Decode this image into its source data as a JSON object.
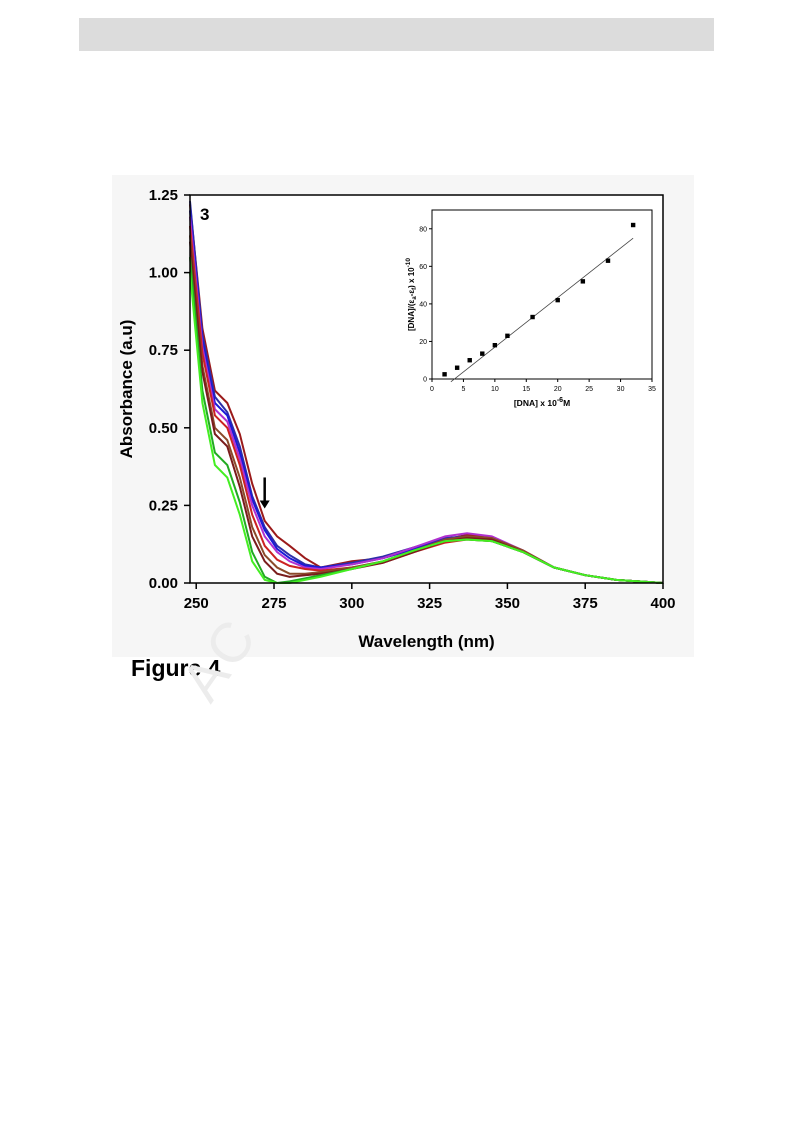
{
  "page": {
    "caption": "Figure 4",
    "watermark": "AC"
  },
  "chart_data": [
    {
      "type": "line",
      "panel_label": "3",
      "xlabel": "Wavelength (nm)",
      "ylabel": "Absorbance (a.u)",
      "xlim": [
        248,
        400
      ],
      "ylim": [
        0,
        1.25
      ],
      "xticks": [
        "250",
        "275",
        "300",
        "325",
        "350",
        "375",
        "400"
      ],
      "yticks": [
        "0.00",
        "0.25",
        "0.50",
        "0.75",
        "1.00",
        "1.25"
      ],
      "annotation": "arrow pointing down near 272 nm (hypochromism)",
      "arrow_x": 272,
      "arrow_y": [
        0.34,
        0.24
      ],
      "series": [
        {
          "color": "#9b1a1a",
          "points": [
            [
              248,
              1.22
            ],
            [
              252,
              0.82
            ],
            [
              256,
              0.62
            ],
            [
              260,
              0.58
            ],
            [
              264,
              0.48
            ],
            [
              268,
              0.32
            ],
            [
              272,
              0.2
            ],
            [
              276,
              0.15
            ],
            [
              280,
              0.12
            ],
            [
              285,
              0.08
            ],
            [
              290,
              0.05
            ],
            [
              300,
              0.07
            ],
            [
              310,
              0.08
            ],
            [
              320,
              0.11
            ],
            [
              330,
              0.14
            ],
            [
              337,
              0.155
            ],
            [
              345,
              0.145
            ],
            [
              355,
              0.1
            ],
            [
              365,
              0.05
            ],
            [
              375,
              0.025
            ],
            [
              385,
              0.01
            ],
            [
              400,
              0.0
            ]
          ]
        },
        {
          "color": "#2e2ea8",
          "points": [
            [
              248,
              1.23
            ],
            [
              252,
              0.8
            ],
            [
              256,
              0.6
            ],
            [
              260,
              0.55
            ],
            [
              264,
              0.44
            ],
            [
              268,
              0.28
            ],
            [
              272,
              0.18
            ],
            [
              276,
              0.12
            ],
            [
              280,
              0.09
            ],
            [
              285,
              0.06
            ],
            [
              290,
              0.05
            ],
            [
              300,
              0.065
            ],
            [
              310,
              0.085
            ],
            [
              320,
              0.115
            ],
            [
              330,
              0.145
            ],
            [
              337,
              0.15
            ],
            [
              345,
              0.14
            ],
            [
              355,
              0.1
            ],
            [
              365,
              0.05
            ],
            [
              375,
              0.025
            ],
            [
              385,
              0.01
            ],
            [
              400,
              0.0
            ]
          ]
        },
        {
          "color": "#1a1ad8",
          "points": [
            [
              248,
              1.2
            ],
            [
              252,
              0.78
            ],
            [
              256,
              0.58
            ],
            [
              260,
              0.54
            ],
            [
              264,
              0.42
            ],
            [
              268,
              0.27
            ],
            [
              272,
              0.17
            ],
            [
              276,
              0.11
            ],
            [
              280,
              0.08
            ],
            [
              285,
              0.055
            ],
            [
              290,
              0.05
            ],
            [
              300,
              0.06
            ],
            [
              310,
              0.08
            ],
            [
              320,
              0.11
            ],
            [
              330,
              0.14
            ],
            [
              337,
              0.145
            ],
            [
              345,
              0.135
            ],
            [
              355,
              0.1
            ],
            [
              365,
              0.05
            ],
            [
              375,
              0.025
            ],
            [
              385,
              0.01
            ],
            [
              400,
              0.0
            ]
          ]
        },
        {
          "color": "#b030d0",
          "points": [
            [
              248,
              1.18
            ],
            [
              252,
              0.76
            ],
            [
              256,
              0.56
            ],
            [
              260,
              0.52
            ],
            [
              264,
              0.4
            ],
            [
              268,
              0.25
            ],
            [
              272,
              0.15
            ],
            [
              276,
              0.1
            ],
            [
              280,
              0.07
            ],
            [
              285,
              0.05
            ],
            [
              290,
              0.045
            ],
            [
              300,
              0.06
            ],
            [
              310,
              0.08
            ],
            [
              320,
              0.115
            ],
            [
              330,
              0.15
            ],
            [
              337,
              0.16
            ],
            [
              345,
              0.15
            ],
            [
              355,
              0.105
            ],
            [
              365,
              0.05
            ],
            [
              375,
              0.025
            ],
            [
              385,
              0.01
            ],
            [
              400,
              0.0
            ]
          ]
        },
        {
          "color": "#cc2222",
          "points": [
            [
              248,
              1.15
            ],
            [
              252,
              0.74
            ],
            [
              256,
              0.54
            ],
            [
              260,
              0.5
            ],
            [
              264,
              0.38
            ],
            [
              268,
              0.22
            ],
            [
              272,
              0.12
            ],
            [
              276,
              0.075
            ],
            [
              280,
              0.055
            ],
            [
              285,
              0.045
            ],
            [
              290,
              0.04
            ],
            [
              300,
              0.05
            ],
            [
              310,
              0.065
            ],
            [
              320,
              0.1
            ],
            [
              330,
              0.13
            ],
            [
              337,
              0.14
            ],
            [
              345,
              0.135
            ],
            [
              355,
              0.1
            ],
            [
              365,
              0.05
            ],
            [
              375,
              0.025
            ],
            [
              385,
              0.01
            ],
            [
              400,
              0.0
            ]
          ]
        },
        {
          "color": "#8b4a2a",
          "points": [
            [
              248,
              1.12
            ],
            [
              252,
              0.7
            ],
            [
              256,
              0.5
            ],
            [
              260,
              0.46
            ],
            [
              264,
              0.34
            ],
            [
              268,
              0.18
            ],
            [
              272,
              0.09
            ],
            [
              276,
              0.05
            ],
            [
              280,
              0.03
            ],
            [
              285,
              0.03
            ],
            [
              290,
              0.035
            ],
            [
              300,
              0.05
            ],
            [
              310,
              0.07
            ],
            [
              320,
              0.105
            ],
            [
              330,
              0.14
            ],
            [
              337,
              0.15
            ],
            [
              345,
              0.145
            ],
            [
              355,
              0.105
            ],
            [
              365,
              0.05
            ],
            [
              375,
              0.025
            ],
            [
              385,
              0.01
            ],
            [
              400,
              0.0
            ]
          ]
        },
        {
          "color": "#7a1c1c",
          "points": [
            [
              248,
              1.1
            ],
            [
              252,
              0.68
            ],
            [
              256,
              0.48
            ],
            [
              260,
              0.44
            ],
            [
              264,
              0.31
            ],
            [
              268,
              0.15
            ],
            [
              272,
              0.07
            ],
            [
              276,
              0.03
            ],
            [
              280,
              0.02
            ],
            [
              285,
              0.025
            ],
            [
              290,
              0.03
            ],
            [
              300,
              0.045
            ],
            [
              310,
              0.065
            ],
            [
              320,
              0.1
            ],
            [
              330,
              0.135
            ],
            [
              337,
              0.145
            ],
            [
              345,
              0.14
            ],
            [
              355,
              0.1
            ],
            [
              365,
              0.05
            ],
            [
              375,
              0.025
            ],
            [
              385,
              0.01
            ],
            [
              400,
              0.0
            ]
          ]
        },
        {
          "color": "#22aa22",
          "points": [
            [
              248,
              1.05
            ],
            [
              252,
              0.62
            ],
            [
              256,
              0.42
            ],
            [
              260,
              0.38
            ],
            [
              264,
              0.26
            ],
            [
              268,
              0.1
            ],
            [
              272,
              0.02
            ],
            [
              276,
              0.0
            ],
            [
              280,
              0.005
            ],
            [
              285,
              0.015
            ],
            [
              290,
              0.025
            ],
            [
              300,
              0.045
            ],
            [
              310,
              0.07
            ],
            [
              320,
              0.105
            ],
            [
              330,
              0.135
            ],
            [
              337,
              0.14
            ],
            [
              345,
              0.135
            ],
            [
              355,
              0.1
            ],
            [
              365,
              0.05
            ],
            [
              375,
              0.025
            ],
            [
              385,
              0.01
            ],
            [
              400,
              0.0
            ]
          ]
        },
        {
          "color": "#44ee22",
          "points": [
            [
              248,
              1.0
            ],
            [
              252,
              0.58
            ],
            [
              256,
              0.38
            ],
            [
              260,
              0.34
            ],
            [
              264,
              0.22
            ],
            [
              268,
              0.07
            ],
            [
              272,
              0.01
            ],
            [
              276,
              0.0
            ],
            [
              280,
              0.0
            ],
            [
              285,
              0.01
            ],
            [
              290,
              0.02
            ],
            [
              300,
              0.045
            ],
            [
              310,
              0.07
            ],
            [
              320,
              0.105
            ],
            [
              330,
              0.135
            ],
            [
              337,
              0.14
            ],
            [
              345,
              0.135
            ],
            [
              355,
              0.1
            ],
            [
              365,
              0.05
            ],
            [
              375,
              0.025
            ],
            [
              385,
              0.01
            ],
            [
              400,
              0.0
            ]
          ]
        }
      ]
    },
    {
      "type": "scatter",
      "role": "inset",
      "xlabel_main": "[DNA] x 10",
      "xlabel_exp": "-6",
      "xlabel_unit": "M",
      "ylabel_main": "[DNA]/(ε",
      "ylabel_sub1": "a",
      "ylabel_mid": "-ε",
      "ylabel_sub2": "f",
      "ylabel_tail": ") x 10",
      "ylabel_exp": "-10",
      "xlim": [
        0,
        35
      ],
      "ylim": [
        0,
        90
      ],
      "xticks": [
        "0",
        "5",
        "10",
        "15",
        "20",
        "25",
        "30",
        "35"
      ],
      "yticks": [
        "0",
        "20",
        "40",
        "60",
        "80"
      ],
      "x": [
        2,
        4,
        6,
        8,
        10,
        12,
        16,
        20,
        24,
        28,
        32
      ],
      "y": [
        2.5,
        6,
        10,
        13.5,
        18,
        23,
        33,
        42,
        52,
        63,
        82
      ],
      "fit_line": {
        "x": [
          3,
          32
        ],
        "y": [
          -1.5,
          75
        ]
      }
    }
  ]
}
